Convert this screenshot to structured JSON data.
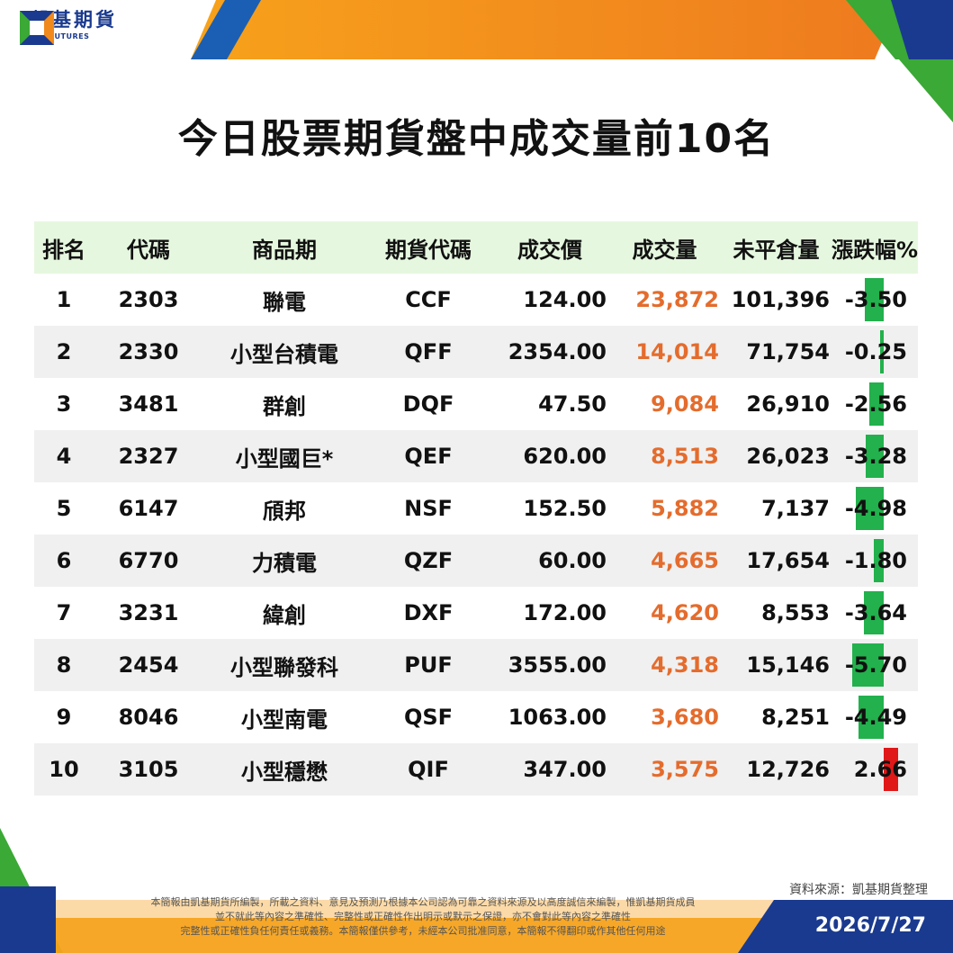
{
  "brand": {
    "name_cn": "凱基期貨",
    "name_en": "KGI FUTURES",
    "colors": {
      "blue": "#1a3a8f",
      "orange": "#f08a1c",
      "green": "#3aa935"
    }
  },
  "title": "今日股票期貨盤中成交量前10名",
  "table": {
    "headers": [
      "排名",
      "代碼",
      "商品期",
      "期貨代碼",
      "成交價",
      "成交量",
      "未平倉量",
      "漲跌幅%"
    ],
    "rows": [
      {
        "rank": "1",
        "code": "2303",
        "product": "聯電",
        "futures_code": "CCF",
        "price": "124.00",
        "volume": "23,872",
        "open_interest": "101,396",
        "change": "-3.50",
        "change_value": -3.5
      },
      {
        "rank": "2",
        "code": "2330",
        "product": "小型台積電",
        "futures_code": "QFF",
        "price": "2354.00",
        "volume": "14,014",
        "open_interest": "71,754",
        "change": "-0.25",
        "change_value": -0.25
      },
      {
        "rank": "3",
        "code": "3481",
        "product": "群創",
        "futures_code": "DQF",
        "price": "47.50",
        "volume": "9,084",
        "open_interest": "26,910",
        "change": "-2.56",
        "change_value": -2.56
      },
      {
        "rank": "4",
        "code": "2327",
        "product": "小型國巨*",
        "futures_code": "QEF",
        "price": "620.00",
        "volume": "8,513",
        "open_interest": "26,023",
        "change": "-3.28",
        "change_value": -3.28
      },
      {
        "rank": "5",
        "code": "6147",
        "product": "頎邦",
        "futures_code": "NSF",
        "price": "152.50",
        "volume": "5,882",
        "open_interest": "7,137",
        "change": "-4.98",
        "change_value": -4.98
      },
      {
        "rank": "6",
        "code": "6770",
        "product": "力積電",
        "futures_code": "QZF",
        "price": "60.00",
        "volume": "4,665",
        "open_interest": "17,654",
        "change": "-1.80",
        "change_value": -1.8
      },
      {
        "rank": "7",
        "code": "3231",
        "product": "緯創",
        "futures_code": "DXF",
        "price": "172.00",
        "volume": "4,620",
        "open_interest": "8,553",
        "change": "-3.64",
        "change_value": -3.64
      },
      {
        "rank": "8",
        "code": "2454",
        "product": "小型聯發科",
        "futures_code": "PUF",
        "price": "3555.00",
        "volume": "4,318",
        "open_interest": "15,146",
        "change": "-5.70",
        "change_value": -5.7
      },
      {
        "rank": "9",
        "code": "8046",
        "product": "小型南電",
        "futures_code": "QSF",
        "price": "1063.00",
        "volume": "3,680",
        "open_interest": "8,251",
        "change": "-4.49",
        "change_value": -4.49
      },
      {
        "rank": "10",
        "code": "3105",
        "product": "小型穩懋",
        "futures_code": "QIF",
        "price": "347.00",
        "volume": "3,575",
        "open_interest": "12,726",
        "change": "2.66",
        "change_value": 2.66
      }
    ],
    "colors": {
      "volume_text": "#e46c2d",
      "negative_bar": "#22b14c",
      "positive_bar": "#e01818",
      "header_bg": "#e6f7df",
      "alt_row_bg": "#f0f0f0"
    }
  },
  "footer": {
    "source": "資料來源：凱基期貨整理",
    "disclaimer": [
      "本簡報由凱基期貨所編製，所載之資料、意見及預測乃根據本公司認為可靠之資料來源及以高度誠信來編製，惟凱基期貨成員",
      "並不就此等內容之準確性、完整性或正確性作出明示或默示之保證，亦不會對此等內容之準確性",
      "完整性或正確性負任何責任或義務。本簡報僅供參考，未經本公司批准同意，本簡報不得翻印或作其他任何用途"
    ],
    "date": "2026/7/27"
  }
}
